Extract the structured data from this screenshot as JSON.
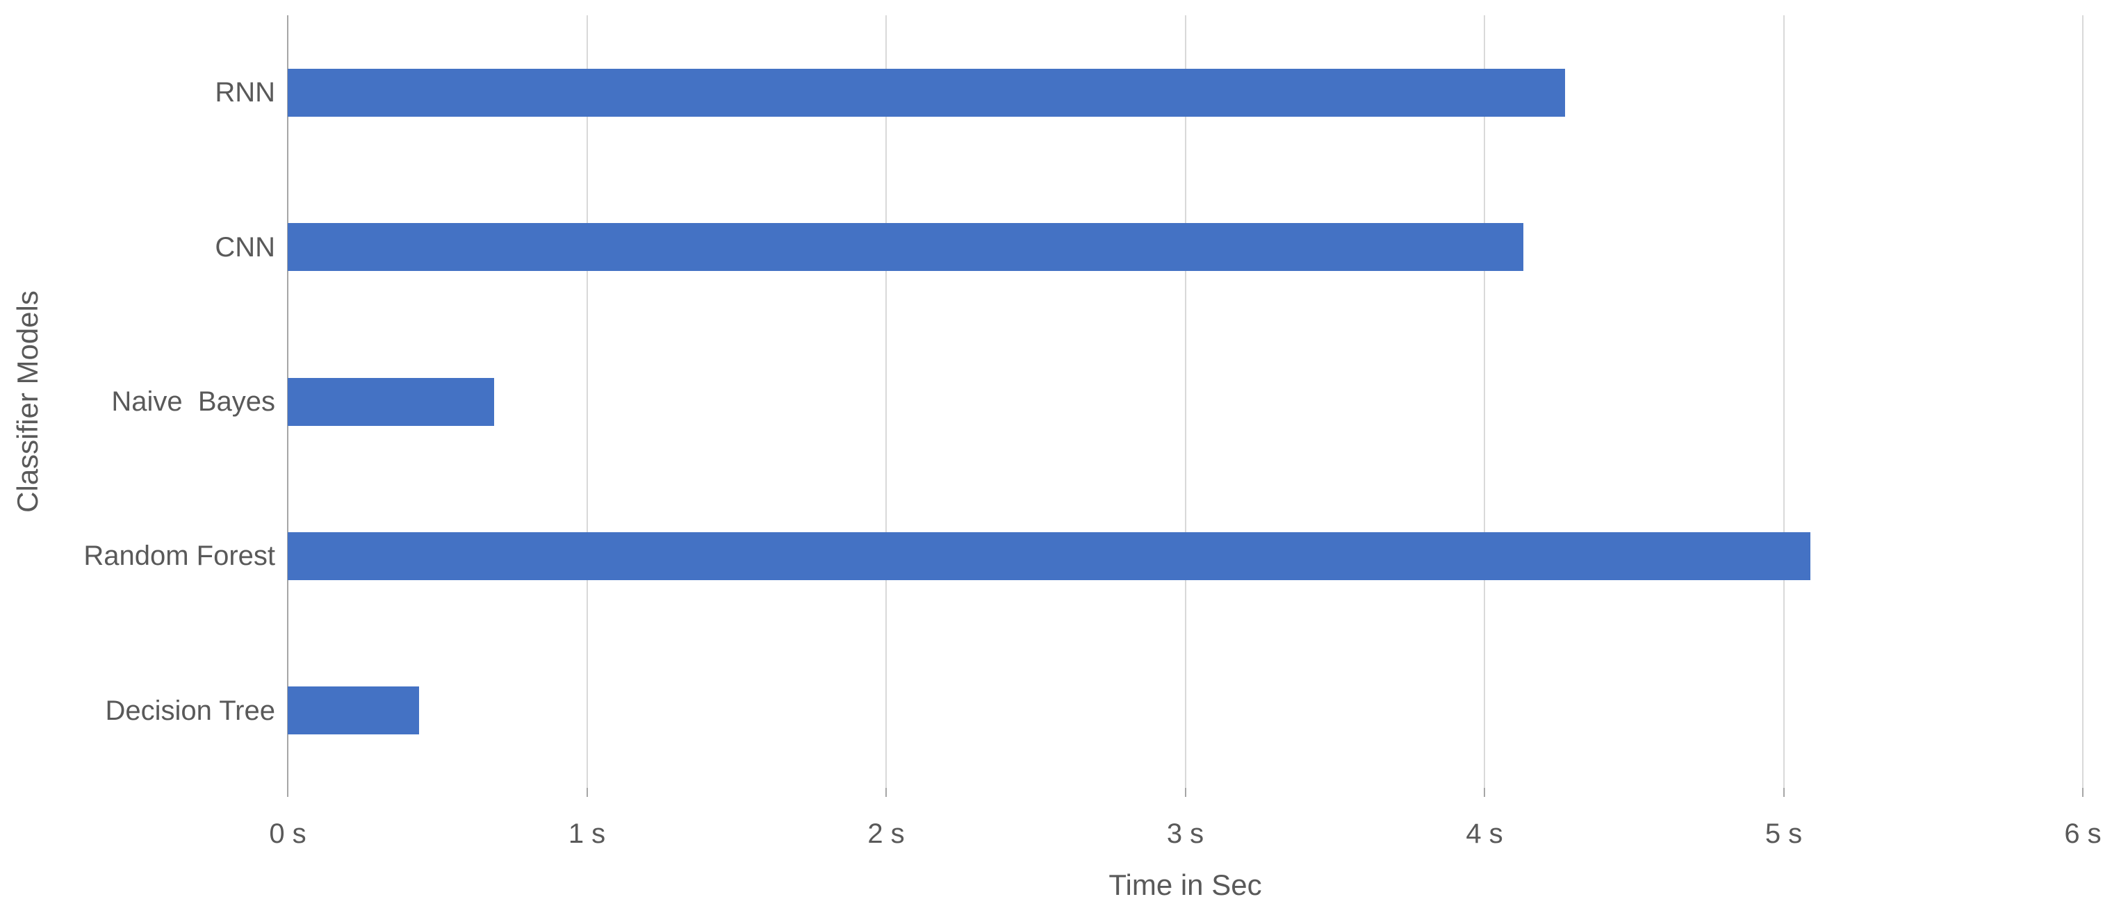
{
  "window": {
    "background_color": "#FFFFFF"
  },
  "chart_data": {
    "type": "bar",
    "orientation": "horizontal",
    "xlabel": "Time in Sec",
    "ylabel": "Classifier Models",
    "categories": [
      "RNN",
      "CNN",
      "Naive  Bayes",
      "Random Forest",
      "Decision Tree"
    ],
    "values": [
      4.27,
      4.13,
      0.69,
      5.09,
      0.44
    ],
    "series_name": "Time in Sec",
    "xlim": [
      0,
      6
    ],
    "x_tick_step": 1,
    "x_tick_labels": [
      "0 s",
      "1 s",
      "2 s",
      "3 s",
      "4 s",
      "5 s",
      "6 s"
    ],
    "grid": "vertical gridlines on",
    "legend_position": "none",
    "title": "",
    "colors": {
      "bar": "#4472C4",
      "gridline": "#D9D9D9",
      "axis_line": "#A6A6A6",
      "label_text": "#595959"
    }
  }
}
